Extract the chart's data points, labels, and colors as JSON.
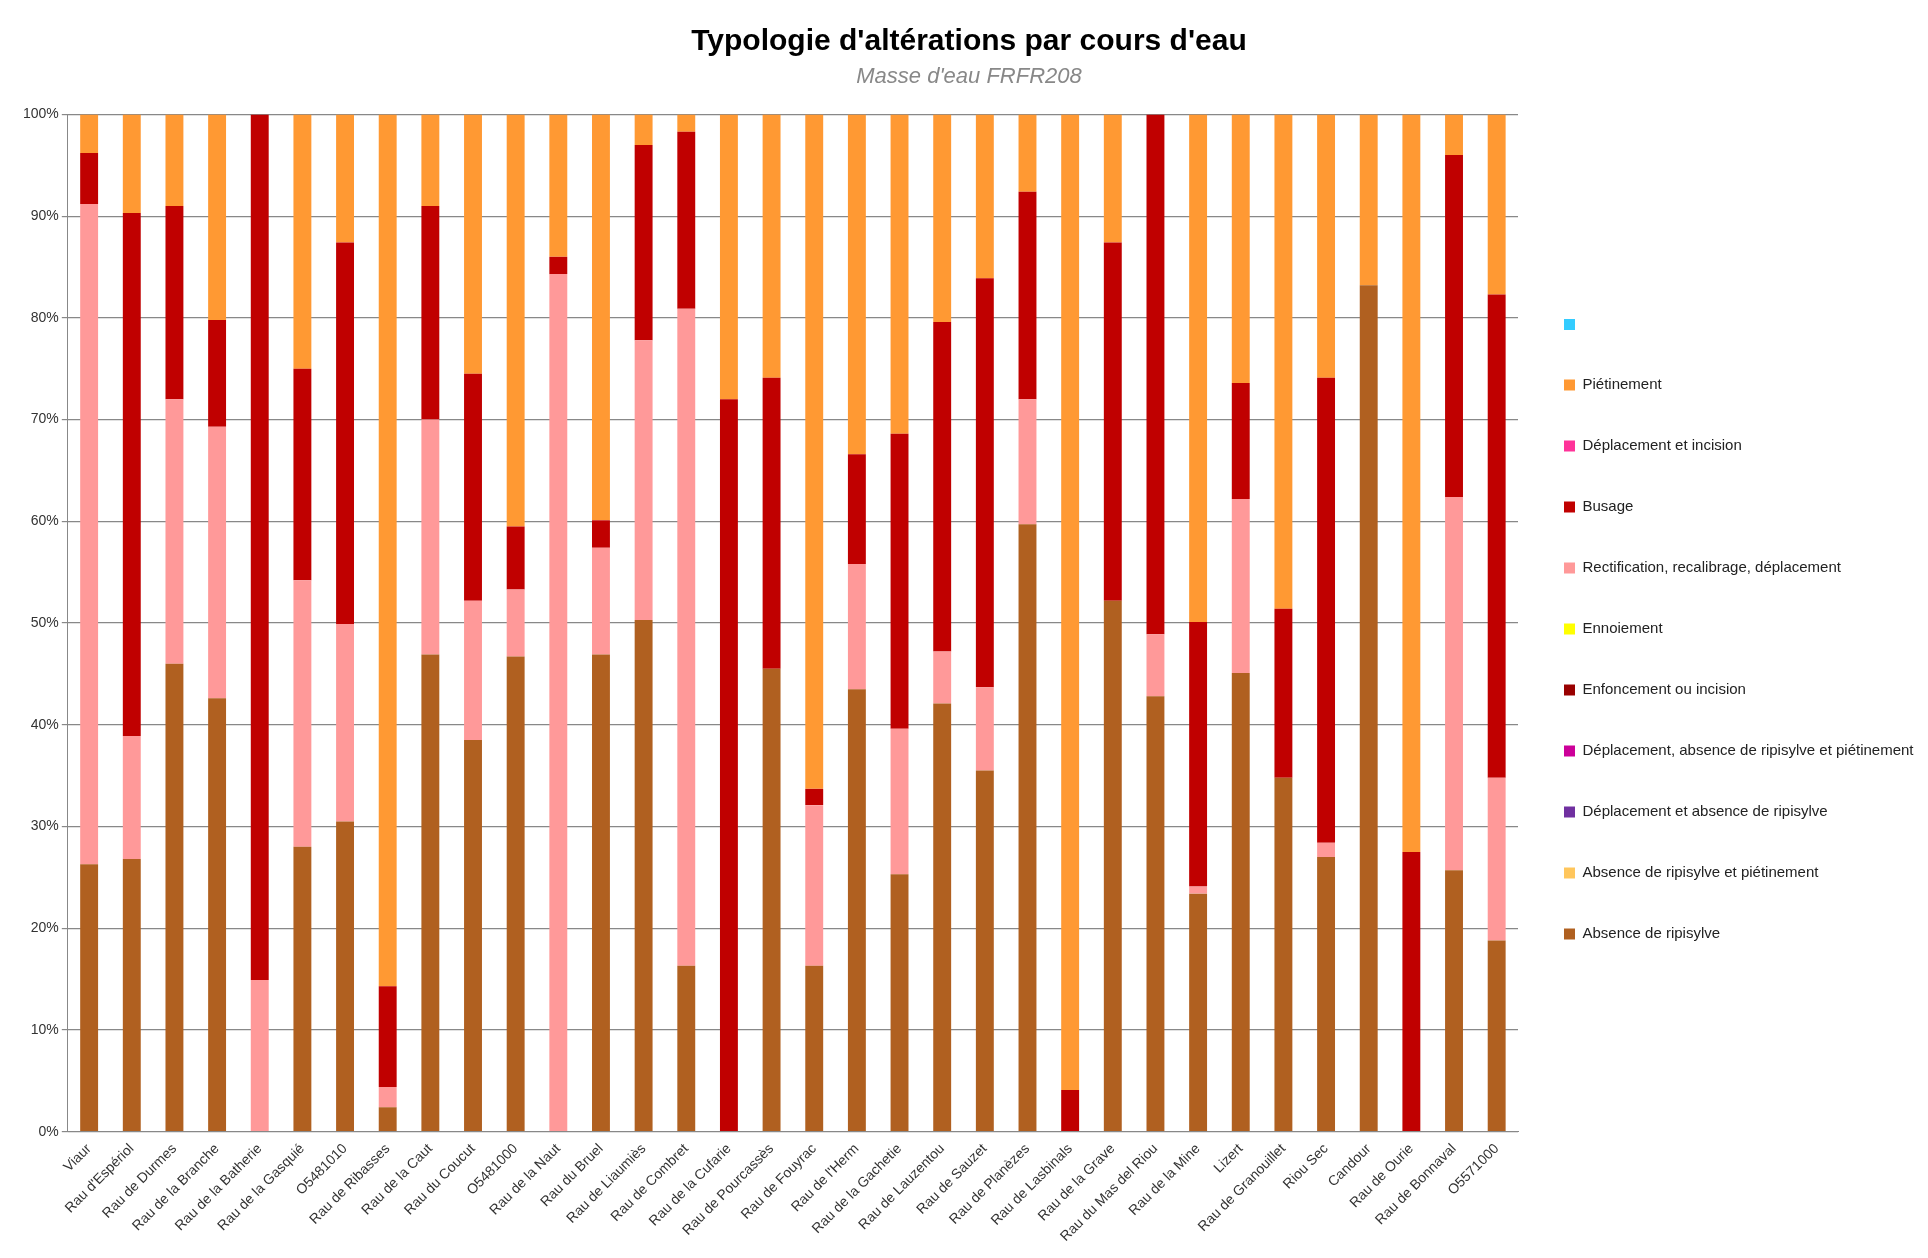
{
  "chart_data": {
    "type": "bar",
    "stacked": true,
    "title": "Typologie d'altérations par cours d'eau",
    "subtitle": "Masse d'eau FRFR208",
    "categories": [
      "Viaur",
      "Rau d'Espériol",
      "Rau de Durmes",
      "Rau de la Branche",
      "Rau de la Batherie",
      "Rau de la Gasquié",
      "O5481010",
      "Rau de Ribasses",
      "Rau de la Caut",
      "Rau du Coucut",
      "O5481000",
      "Rau de la Naut",
      "Rau du Bruel",
      "Rau de Liaumiès",
      "Rau de Combret",
      "Rau de la Cufarie",
      "Rau de Pourcassès",
      "Rau de Fouyrac",
      "Rau de l'Herm",
      "Rau de la Gachetie",
      "Rau de Lauzentou",
      "Rau de Sauzet",
      "Rau de Planèzes",
      "Rau de Lasbinals",
      "Rau de la Grave",
      "Rau du Mas del Riou",
      "Rau de la Mine",
      "Lizert",
      "Rau de Granouillet",
      "Riou Sec",
      "Candour",
      "Rau de Ourie",
      "Rau de Bonnaval",
      "O5571000"
    ],
    "series": [
      {
        "name": "Absence de ripisylve",
        "color": "#b06020",
        "values": [
          26.3,
          26.8,
          46.0,
          42.6,
          0,
          28.0,
          30.5,
          2.4,
          46.9,
          38.5,
          46.7,
          0,
          46.9,
          50.3,
          16.3,
          0,
          45.5,
          16.3,
          43.5,
          25.3,
          42.1,
          35.5,
          59.7,
          0,
          52.2,
          42.8,
          23.4,
          45.1,
          34.8,
          27.0,
          83.2,
          0,
          25.7,
          18.8
        ]
      },
      {
        "name": "Absence de ripisylve et piétinement",
        "color": "#ffc65c",
        "values": [
          0,
          0,
          0,
          0,
          0,
          0,
          0,
          0,
          0,
          0,
          0,
          0,
          0,
          0,
          0,
          0,
          0,
          0,
          0,
          0,
          0,
          0,
          0,
          0,
          0,
          0,
          0,
          0,
          0,
          0,
          0,
          0,
          0,
          0
        ]
      },
      {
        "name": "Déplacement et absence de ripisylve",
        "color": "#7030a0",
        "values": [
          0,
          0,
          0,
          0,
          0,
          0,
          0,
          0,
          0,
          0,
          0,
          0,
          0,
          0,
          0,
          0,
          0,
          0,
          0,
          0,
          0,
          0,
          0,
          0,
          0,
          0,
          0,
          0,
          0,
          0,
          0,
          0,
          0,
          0
        ]
      },
      {
        "name": "Déplacement, absence de ripisylve et piétinement",
        "color": "#cc0099",
        "values": [
          0,
          0,
          0,
          0,
          0,
          0,
          0,
          0,
          0,
          0,
          0,
          0,
          0,
          0,
          0,
          0,
          0,
          0,
          0,
          0,
          0,
          0,
          0,
          0,
          0,
          0,
          0,
          0,
          0,
          0,
          0,
          0,
          0,
          0
        ]
      },
      {
        "name": "Enfoncement ou incision",
        "color": "#990000",
        "values": [
          0,
          0,
          0,
          0,
          0,
          0,
          0,
          0,
          0,
          0,
          0,
          0,
          0,
          0,
          0,
          0,
          0,
          0,
          0,
          0,
          0,
          0,
          0,
          0,
          0,
          0,
          0,
          0,
          0,
          0,
          0,
          0,
          0,
          0
        ]
      },
      {
        "name": "Ennoiement",
        "color": "#ffff00",
        "values": [
          0,
          0,
          0,
          0,
          0,
          0,
          0,
          0,
          0,
          0,
          0,
          0,
          0,
          0,
          0,
          0,
          0,
          0,
          0,
          0,
          0,
          0,
          0,
          0,
          0,
          0,
          0,
          0,
          0,
          0,
          0,
          0,
          0,
          0
        ]
      },
      {
        "name": "Rectification, recalibrage, déplacement",
        "color": "#ff9999",
        "values": [
          64.9,
          12.1,
          26.0,
          26.7,
          14.9,
          26.2,
          19.4,
          2.0,
          23.1,
          13.7,
          6.6,
          84.3,
          10.5,
          27.5,
          64.6,
          0,
          0,
          15.8,
          12.3,
          14.3,
          5.1,
          8.2,
          12.3,
          0,
          0,
          6.1,
          0.7,
          17.1,
          0,
          1.4,
          0,
          0,
          36.7,
          16.0
        ]
      },
      {
        "name": "Busage",
        "color": "#c00000",
        "values": [
          5.0,
          51.4,
          19.0,
          10.5,
          85.1,
          20.8,
          37.5,
          9.9,
          21.0,
          22.3,
          6.2,
          1.7,
          2.7,
          19.2,
          17.4,
          72.0,
          28.6,
          1.6,
          10.8,
          29.0,
          32.4,
          40.2,
          20.4,
          4.1,
          35.2,
          51.1,
          26.0,
          11.4,
          16.6,
          45.7,
          0,
          27.5,
          33.6,
          47.5
        ]
      },
      {
        "name": "Déplacement et incision",
        "color": "#ff3399",
        "values": [
          0,
          0,
          0,
          0,
          0,
          0,
          0,
          0,
          0,
          0,
          0,
          0,
          0,
          0,
          0,
          0,
          0,
          0,
          0,
          0,
          0,
          0,
          0,
          0,
          0,
          0,
          0,
          0,
          0,
          0,
          0,
          0,
          0,
          0
        ]
      },
      {
        "name": "Piétinement",
        "color": "#ff9933",
        "values": [
          3.8,
          9.7,
          9.0,
          20.2,
          0,
          25.0,
          12.6,
          85.7,
          9.0,
          25.5,
          40.5,
          14.0,
          39.9,
          3.0,
          1.7,
          28.0,
          25.9,
          66.3,
          33.4,
          31.4,
          20.4,
          16.1,
          7.6,
          95.9,
          12.6,
          0,
          49.9,
          26.4,
          48.6,
          25.9,
          16.8,
          72.5,
          4.0,
          17.7
        ]
      },
      {
        "color": "#33ccff",
        "values": [
          0,
          0,
          0,
          0,
          0,
          0,
          0,
          0,
          0,
          0,
          0,
          0,
          0,
          0,
          0,
          0,
          0,
          0,
          0,
          0,
          0,
          0,
          0,
          0,
          0,
          0,
          0,
          0,
          0,
          0,
          0,
          0,
          0,
          0
        ]
      }
    ],
    "ylim": [
      0,
      100
    ],
    "yticks": [
      {
        "value": 0,
        "label": "0%"
      },
      {
        "value": 10,
        "label": "10%"
      },
      {
        "value": 20,
        "label": "20%"
      },
      {
        "value": 30,
        "label": "30%"
      },
      {
        "value": 40,
        "label": "40%"
      },
      {
        "value": 50,
        "label": "50%"
      },
      {
        "value": 60,
        "label": "60%"
      },
      {
        "value": 70,
        "label": "70%"
      },
      {
        "value": 80,
        "label": "80%"
      },
      {
        "value": 90,
        "label": "90%"
      },
      {
        "value": 100,
        "label": "100%"
      }
    ],
    "grid": "y",
    "legend": "right"
  }
}
